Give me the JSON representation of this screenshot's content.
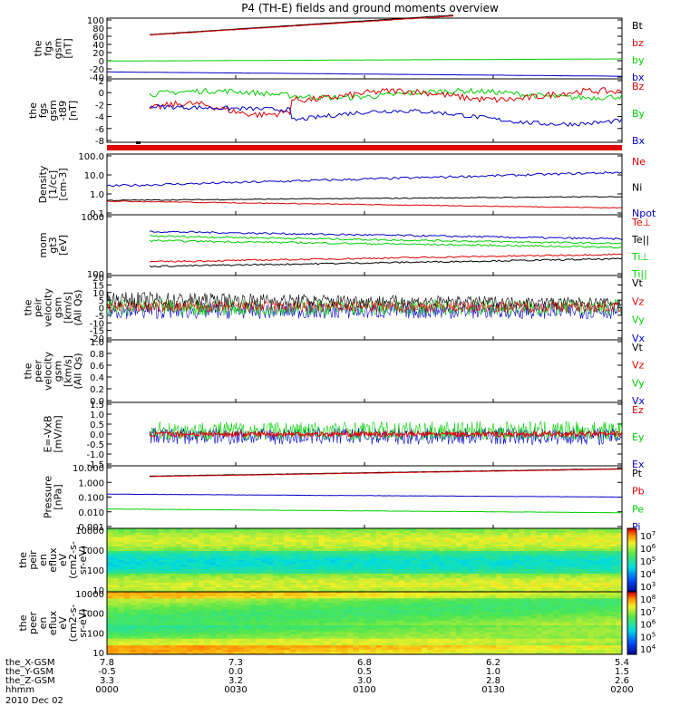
{
  "title": "P4 (TH-E) fields and ground moments overview",
  "date": "2010 Dec 02",
  "ephemeris": {
    "rows": [
      {
        "label": "the_X-GSM",
        "values": [
          "7.8",
          "7.3",
          "6.8",
          "6.2",
          "5.4"
        ]
      },
      {
        "label": "the_Y-GSM",
        "values": [
          "-0.5",
          "0.0",
          "0.5",
          "1.0",
          "1.5"
        ]
      },
      {
        "label": "the_Z-GSM",
        "values": [
          "3.3",
          "3.2",
          "3.0",
          "2.8",
          "2.6"
        ]
      },
      {
        "label": "hhmm",
        "values": [
          "0000",
          "0030",
          "0100",
          "0130",
          "0200"
        ]
      }
    ]
  },
  "colors": {
    "black": "#000000",
    "red": "#e00000",
    "green": "#00d000",
    "blue": "#0000c8"
  },
  "chart_data": [
    {
      "type": "line",
      "ylabel": [
        "the",
        "fgs",
        "gsm",
        "[nT]"
      ],
      "yticks": [
        "100",
        "80",
        "60",
        "40",
        "20",
        "0",
        "-20",
        "-40"
      ],
      "ylim": [
        -40,
        100
      ],
      "legend": [
        {
          "name": "Bt",
          "color": "black"
        },
        {
          "name": "bz",
          "color": "red"
        },
        {
          "name": "by",
          "color": "green"
        },
        {
          "name": "bx",
          "color": "blue"
        }
      ]
    },
    {
      "type": "line",
      "ylabel": [
        "the",
        "fgs",
        "gsm",
        "-t89",
        "[nT]"
      ],
      "yticks": [
        "2",
        "0",
        "-2",
        "-4",
        "-6",
        "-8"
      ],
      "ylim": [
        -9,
        2.5
      ],
      "legend": [
        {
          "name": "Bz",
          "color": "red"
        },
        {
          "name": "By",
          "color": "green"
        },
        {
          "name": "Bx",
          "color": "blue"
        }
      ]
    },
    {
      "type": "line",
      "ylabel": [
        "Density",
        "[1/cc]",
        "[cm-3]"
      ],
      "yticks": [
        "100.0",
        "10.0",
        "1.0",
        "0.1"
      ],
      "log": true,
      "legend": [
        {
          "name": "Ne",
          "color": "red"
        },
        {
          "name": "Ni",
          "color": "black"
        },
        {
          "name": "Npot",
          "color": "blue"
        }
      ]
    },
    {
      "type": "line",
      "ylabel": [
        "mom",
        "gt3",
        "[eV]"
      ],
      "yticks": [
        "1000",
        "100"
      ],
      "log": true,
      "legend": [
        {
          "name": "Te⊥",
          "color": "red"
        },
        {
          "name": "Te||",
          "color": "black"
        },
        {
          "name": "Ti⊥",
          "color": "green"
        },
        {
          "name": "Ti||",
          "color": "green"
        }
      ]
    },
    {
      "type": "line",
      "ylabel": [
        "the",
        "peir",
        "velocity",
        "gsm",
        "[km/s]",
        "(All Qs)"
      ],
      "yticks": [
        "20",
        "15",
        "10",
        "5",
        "0",
        "-5",
        "-10",
        "-15",
        "-20"
      ],
      "ylim": [
        -20,
        20
      ],
      "legend": [
        {
          "name": "Vt",
          "color": "black"
        },
        {
          "name": "Vz",
          "color": "red"
        },
        {
          "name": "Vy",
          "color": "green"
        },
        {
          "name": "Vx",
          "color": "blue"
        }
      ]
    },
    {
      "type": "line",
      "ylabel": [
        "the",
        "peer",
        "velocity",
        "gsm",
        "[km/s]",
        "(All Qs)"
      ],
      "yticks": [
        "1.0",
        "0.8",
        "0.6",
        "0.4",
        "0.2",
        "0.0"
      ],
      "ylim": [
        0,
        1
      ],
      "legend": [
        {
          "name": "Vt",
          "color": "black"
        },
        {
          "name": "Vz",
          "color": "red"
        },
        {
          "name": "Vy",
          "color": "green"
        },
        {
          "name": "Vx",
          "color": "blue"
        }
      ]
    },
    {
      "type": "line",
      "ylabel": [
        "E=-VxB",
        "[mV/m]"
      ],
      "yticks": [
        "1.5",
        "1.0",
        "0.5",
        "0.0",
        "-0.5",
        "-1.0",
        "-1.5"
      ],
      "ylim": [
        -1.5,
        1.5
      ],
      "legend": [
        {
          "name": "Ez",
          "color": "red"
        },
        {
          "name": "Ey",
          "color": "green"
        },
        {
          "name": "Ex",
          "color": "blue"
        }
      ]
    },
    {
      "type": "line",
      "ylabel": [
        "Pressure",
        "[nPa]"
      ],
      "yticks": [
        "10.000",
        "1.000",
        "0.100",
        "0.010",
        "0.001"
      ],
      "log": true,
      "legend": [
        {
          "name": "Pt",
          "color": "black"
        },
        {
          "name": "Pb",
          "color": "red"
        },
        {
          "name": "Pe",
          "color": "green"
        },
        {
          "name": "Pi",
          "color": "blue"
        }
      ]
    },
    {
      "type": "heatmap",
      "ylabel": [
        "the",
        "peir",
        "en",
        "eflux",
        "eV",
        "(cm2-s-",
        "sr-eV)"
      ],
      "yticks": [
        "10000",
        "1000",
        "100",
        "10"
      ],
      "log": true,
      "colorbar": [
        "10^7",
        "10^6",
        "10^5",
        "10^4",
        "10^3"
      ]
    },
    {
      "type": "heatmap",
      "ylabel": [
        "the",
        "peer",
        "en",
        "eflux",
        "eV",
        "(cm2-s-",
        "sr-eV)"
      ],
      "yticks": [
        "10000",
        "1000",
        "100",
        "10"
      ],
      "log": true,
      "colorbar": [
        "10^8",
        "10^7",
        "10^6",
        "10^5",
        "10^4"
      ]
    }
  ]
}
